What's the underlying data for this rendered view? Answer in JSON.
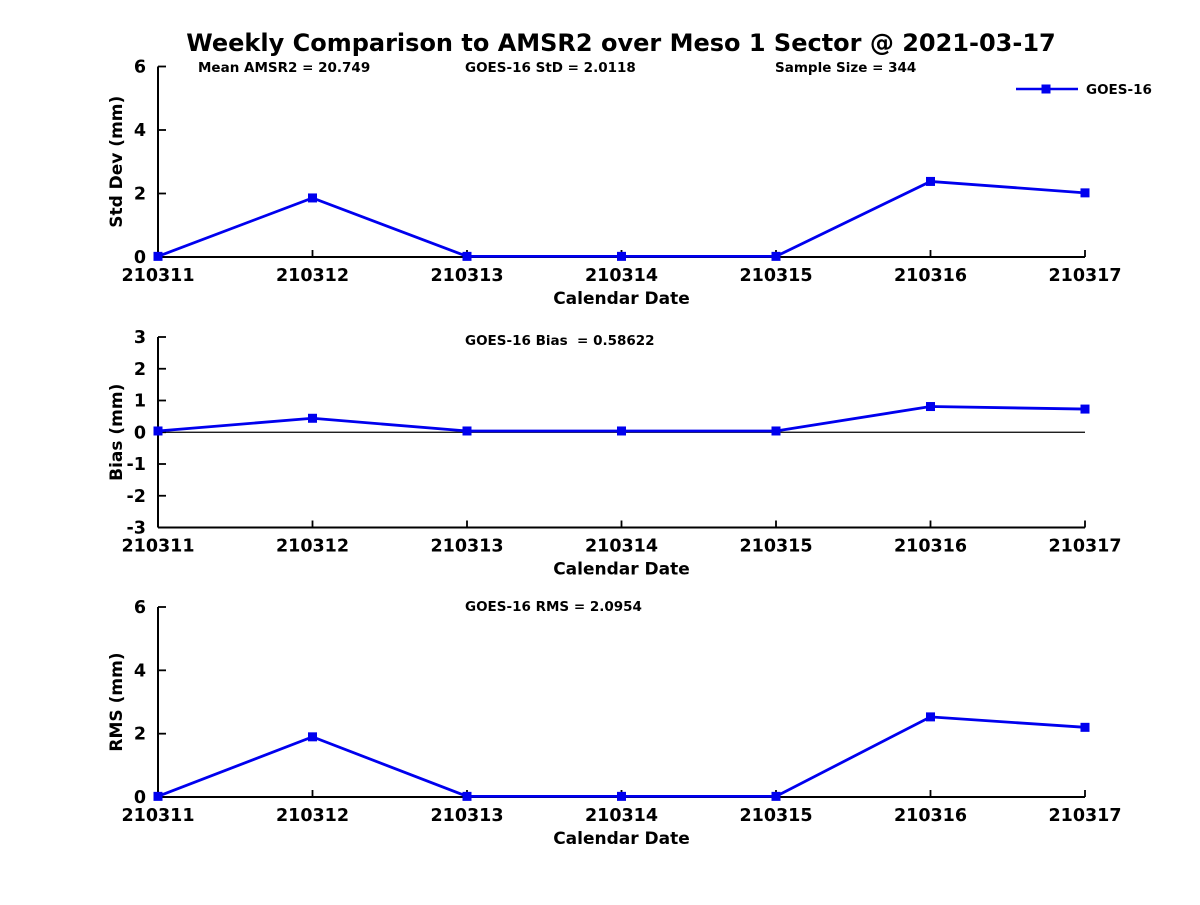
{
  "title": "Weekly Comparison to AMSR2 over Meso 1 Sector @ 2021-03-17",
  "colors": {
    "series": "#0000ee",
    "axis": "#000000"
  },
  "legend": {
    "label": "GOES-16",
    "position": "top-right"
  },
  "x_axis": {
    "label": "Calendar Date",
    "categories": [
      "210311",
      "210312",
      "210313",
      "210314",
      "210315",
      "210316",
      "210317"
    ]
  },
  "chart_data": [
    {
      "type": "line",
      "id": "std-dev",
      "ylabel": "Std Dev (mm)",
      "xlabel": "Calendar Date",
      "ylim": [
        0,
        6
      ],
      "yticks": [
        0,
        2,
        4,
        6
      ],
      "grid": false,
      "legend": true,
      "categories": [
        "210311",
        "210312",
        "210313",
        "210314",
        "210315",
        "210316",
        "210317"
      ],
      "series": [
        {
          "name": "GOES-16",
          "marker": "square",
          "values": [
            0.02,
            1.86,
            0.02,
            0.02,
            0.02,
            2.38,
            2.02
          ]
        }
      ],
      "annotations": [
        "Mean AMSR2 = 20.749",
        "GOES-16 StD = 2.0118",
        "Sample Size = 344"
      ]
    },
    {
      "type": "line",
      "id": "bias",
      "ylabel": "Bias (mm)",
      "xlabel": "Calendar Date",
      "ylim": [
        -3,
        3
      ],
      "yticks": [
        3,
        2,
        1,
        0,
        -1,
        -2,
        -3
      ],
      "grid": false,
      "zero_line": true,
      "categories": [
        "210311",
        "210312",
        "210313",
        "210314",
        "210315",
        "210316",
        "210317"
      ],
      "series": [
        {
          "name": "GOES-16",
          "marker": "square",
          "values": [
            0.04,
            0.44,
            0.04,
            0.04,
            0.04,
            0.81,
            0.73
          ]
        }
      ],
      "annotations": [
        "GOES-16 Bias  = 0.58622"
      ]
    },
    {
      "type": "line",
      "id": "rms",
      "ylabel": "RMS (mm)",
      "xlabel": "Calendar Date",
      "ylim": [
        0,
        6
      ],
      "yticks": [
        0,
        2,
        4,
        6
      ],
      "grid": false,
      "categories": [
        "210311",
        "210312",
        "210313",
        "210314",
        "210315",
        "210316",
        "210317"
      ],
      "series": [
        {
          "name": "GOES-16",
          "marker": "square",
          "values": [
            0.02,
            1.9,
            0.02,
            0.02,
            0.02,
            2.53,
            2.2
          ]
        }
      ],
      "annotations": [
        "GOES-16 RMS = 2.0954"
      ]
    }
  ]
}
